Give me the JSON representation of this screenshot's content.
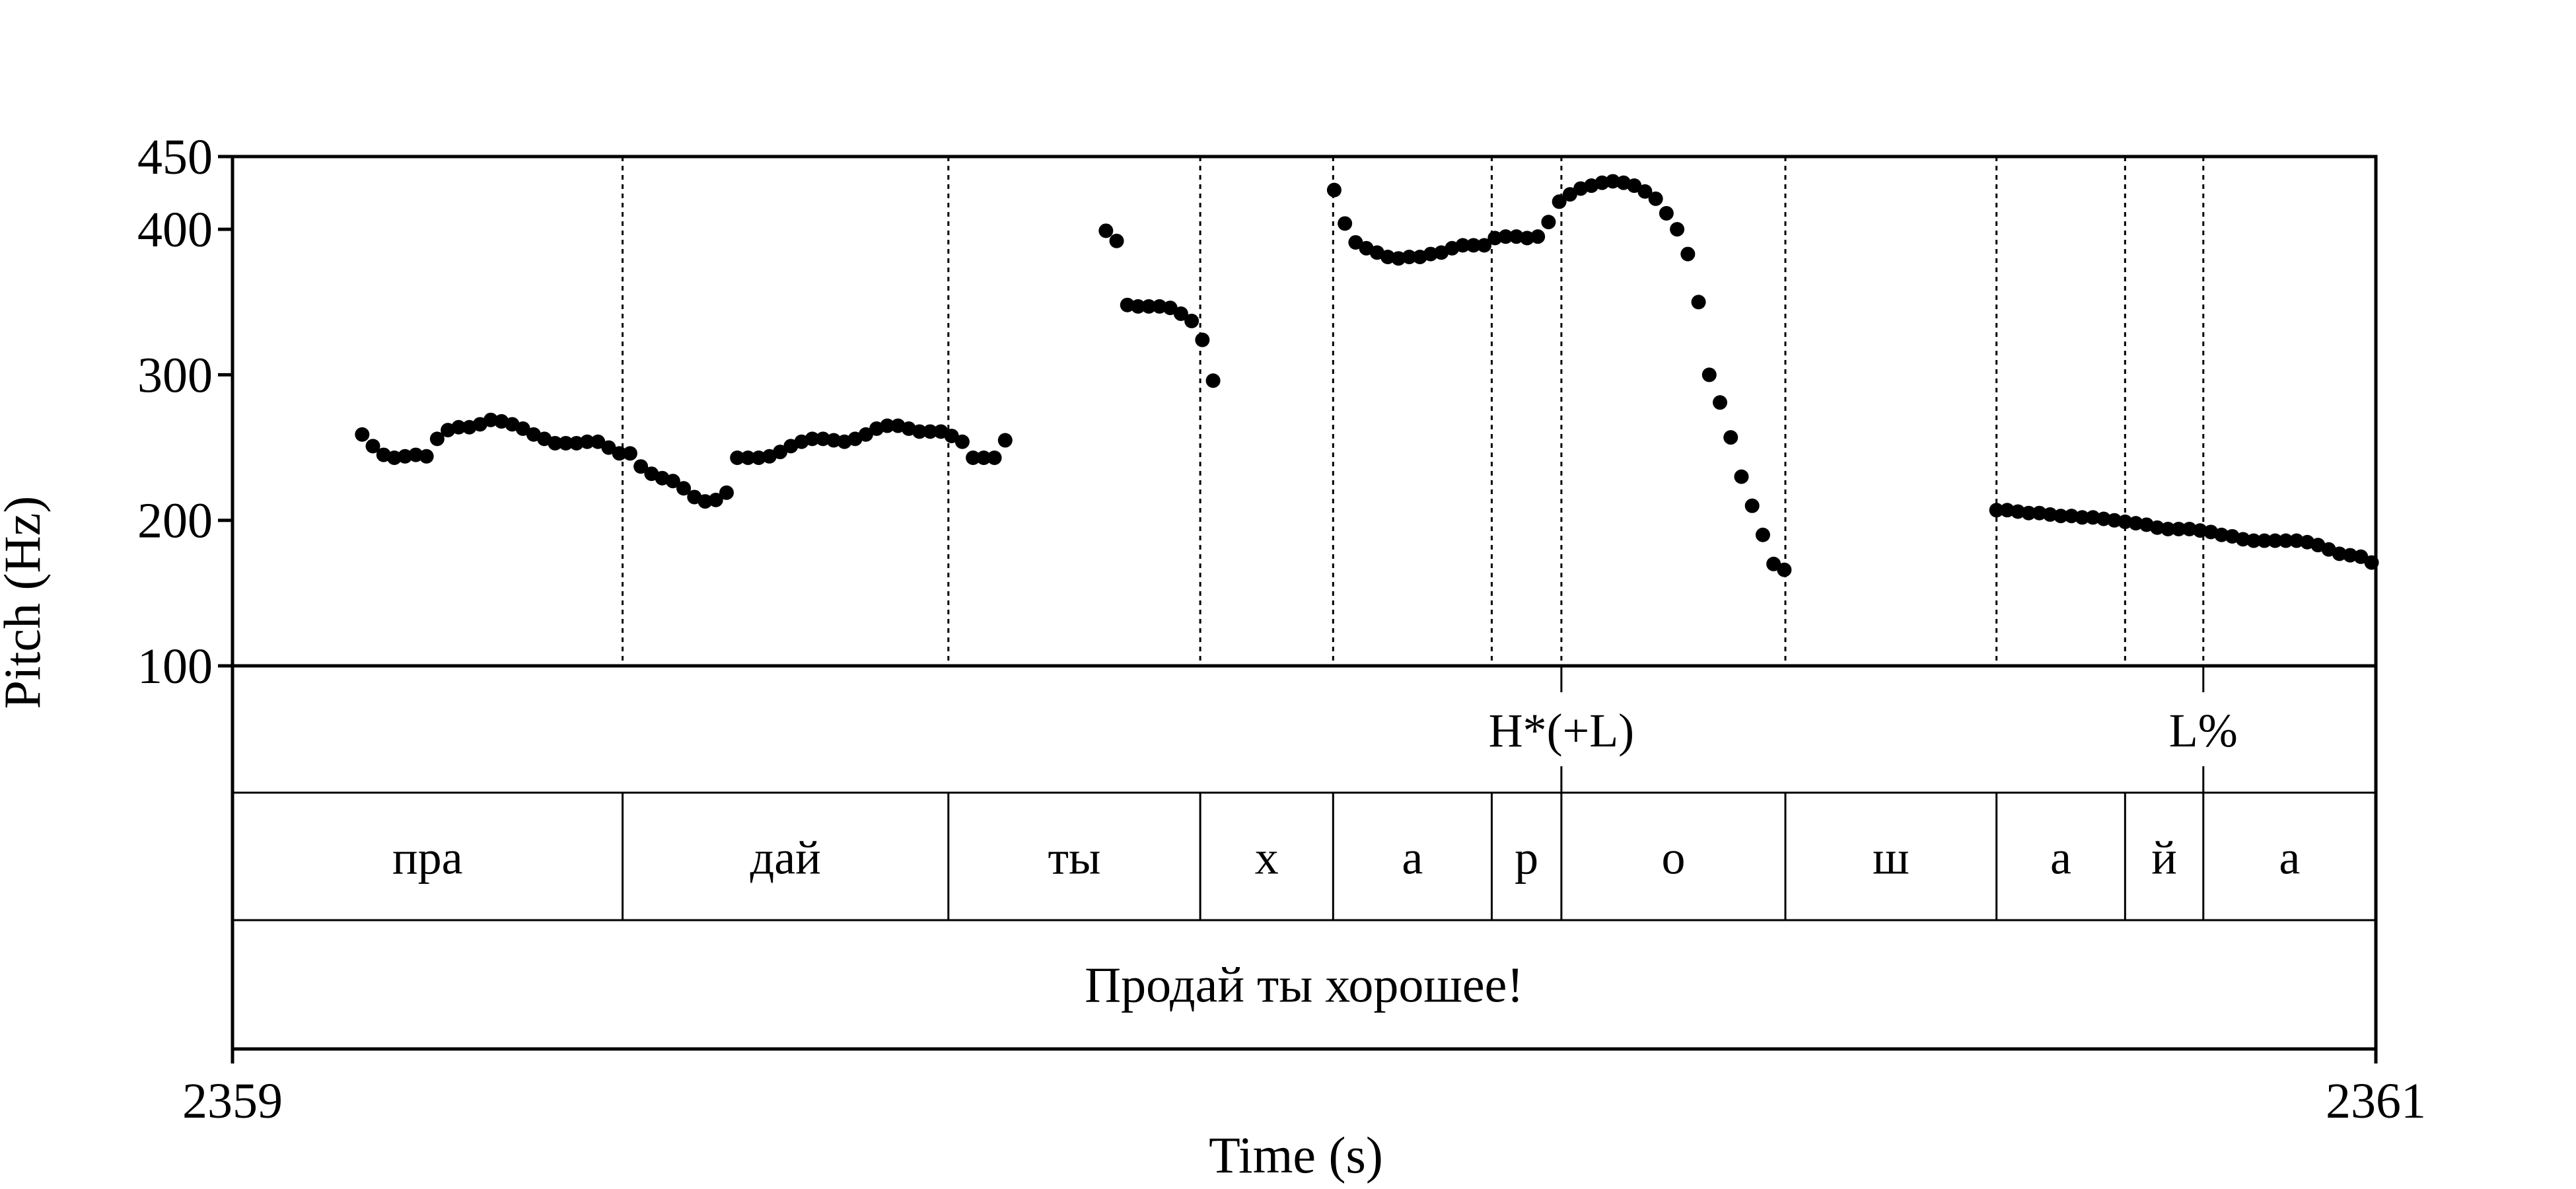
{
  "chart_data": {
    "type": "scatter",
    "ylabel": "Pitch (Hz)",
    "xlabel": "Time (s)",
    "ylim": [
      100,
      450
    ],
    "yticks": [
      "450",
      "400",
      "300",
      "200",
      "100"
    ],
    "xlim": [
      2359,
      2361
    ],
    "xticks": [
      "2359",
      "2361"
    ],
    "grid": false,
    "boundaries": [
      2359.364,
      2359.668,
      2359.903,
      2360.027,
      2360.175,
      2360.24,
      2360.449,
      2360.646,
      2360.766,
      2360.839
    ],
    "tiers": {
      "tones": [
        {
          "label": "H*(+L)",
          "time": 2360.24
        },
        {
          "label": "L%",
          "time": 2360.839
        }
      ],
      "syllables": [
        "пра",
        "дай",
        "ты",
        "х",
        "а",
        "р",
        "о",
        "ш",
        "а",
        "й",
        "а"
      ],
      "sentence": "Продай ты хорошее!"
    },
    "points": [
      [
        2359.121,
        259
      ],
      [
        2359.131,
        251
      ],
      [
        2359.141,
        245
      ],
      [
        2359.151,
        243
      ],
      [
        2359.161,
        244
      ],
      [
        2359.171,
        245
      ],
      [
        2359.181,
        244
      ],
      [
        2359.191,
        256
      ],
      [
        2359.201,
        262
      ],
      [
        2359.211,
        264
      ],
      [
        2359.221,
        264
      ],
      [
        2359.231,
        266
      ],
      [
        2359.241,
        269
      ],
      [
        2359.251,
        268
      ],
      [
        2359.261,
        266
      ],
      [
        2359.271,
        263
      ],
      [
        2359.281,
        259
      ],
      [
        2359.291,
        256
      ],
      [
        2359.301,
        253
      ],
      [
        2359.311,
        253
      ],
      [
        2359.321,
        253
      ],
      [
        2359.331,
        254
      ],
      [
        2359.341,
        254
      ],
      [
        2359.351,
        250
      ],
      [
        2359.361,
        246
      ],
      [
        2359.371,
        246
      ],
      [
        2359.381,
        237
      ],
      [
        2359.391,
        232
      ],
      [
        2359.401,
        229
      ],
      [
        2359.411,
        227
      ],
      [
        2359.421,
        222
      ],
      [
        2359.431,
        216
      ],
      [
        2359.441,
        213
      ],
      [
        2359.451,
        214
      ],
      [
        2359.461,
        219
      ],
      [
        2359.471,
        243
      ],
      [
        2359.481,
        243
      ],
      [
        2359.491,
        243
      ],
      [
        2359.501,
        244
      ],
      [
        2359.511,
        247
      ],
      [
        2359.521,
        251
      ],
      [
        2359.531,
        254
      ],
      [
        2359.541,
        256
      ],
      [
        2359.551,
        256
      ],
      [
        2359.561,
        255
      ],
      [
        2359.571,
        254
      ],
      [
        2359.581,
        256
      ],
      [
        2359.591,
        259
      ],
      [
        2359.601,
        263
      ],
      [
        2359.611,
        265
      ],
      [
        2359.621,
        265
      ],
      [
        2359.631,
        263
      ],
      [
        2359.641,
        261
      ],
      [
        2359.651,
        261
      ],
      [
        2359.661,
        261
      ],
      [
        2359.671,
        258
      ],
      [
        2359.681,
        254
      ],
      [
        2359.691,
        243
      ],
      [
        2359.701,
        243
      ],
      [
        2359.711,
        243
      ],
      [
        2359.721,
        255
      ],
      [
        2359.815,
        399
      ],
      [
        2359.825,
        392
      ],
      [
        2359.835,
        348
      ],
      [
        2359.845,
        347
      ],
      [
        2359.855,
        347
      ],
      [
        2359.865,
        347
      ],
      [
        2359.875,
        346
      ],
      [
        2359.885,
        342
      ],
      [
        2359.895,
        337
      ],
      [
        2359.905,
        324
      ],
      [
        2359.915,
        296
      ],
      [
        2360.028,
        427
      ],
      [
        2360.038,
        404
      ],
      [
        2360.048,
        391
      ],
      [
        2360.058,
        387
      ],
      [
        2360.068,
        384
      ],
      [
        2360.078,
        381
      ],
      [
        2360.088,
        380
      ],
      [
        2360.098,
        381
      ],
      [
        2360.108,
        381
      ],
      [
        2360.118,
        383
      ],
      [
        2360.128,
        384
      ],
      [
        2360.138,
        387
      ],
      [
        2360.148,
        389
      ],
      [
        2360.158,
        389
      ],
      [
        2360.168,
        389
      ],
      [
        2360.178,
        394
      ],
      [
        2360.188,
        395
      ],
      [
        2360.198,
        395
      ],
      [
        2360.208,
        394
      ],
      [
        2360.218,
        395
      ],
      [
        2360.228,
        405
      ],
      [
        2360.238,
        419
      ],
      [
        2360.248,
        424
      ],
      [
        2360.258,
        428
      ],
      [
        2360.268,
        430
      ],
      [
        2360.278,
        432
      ],
      [
        2360.288,
        433
      ],
      [
        2360.298,
        432
      ],
      [
        2360.308,
        430
      ],
      [
        2360.318,
        426
      ],
      [
        2360.328,
        421
      ],
      [
        2360.338,
        411
      ],
      [
        2360.348,
        400
      ],
      [
        2360.358,
        383
      ],
      [
        2360.368,
        350
      ],
      [
        2360.378,
        300
      ],
      [
        2360.388,
        281
      ],
      [
        2360.398,
        257
      ],
      [
        2360.408,
        230
      ],
      [
        2360.418,
        210
      ],
      [
        2360.428,
        190
      ],
      [
        2360.438,
        170
      ],
      [
        2360.448,
        166
      ],
      [
        2360.646,
        207
      ],
      [
        2360.656,
        207
      ],
      [
        2360.666,
        206
      ],
      [
        2360.676,
        205
      ],
      [
        2360.686,
        205
      ],
      [
        2360.696,
        204
      ],
      [
        2360.706,
        203
      ],
      [
        2360.716,
        203
      ],
      [
        2360.726,
        202
      ],
      [
        2360.736,
        202
      ],
      [
        2360.746,
        201
      ],
      [
        2360.756,
        200
      ],
      [
        2360.766,
        199
      ],
      [
        2360.776,
        198
      ],
      [
        2360.786,
        197
      ],
      [
        2360.796,
        195
      ],
      [
        2360.806,
        194
      ],
      [
        2360.816,
        194
      ],
      [
        2360.826,
        194
      ],
      [
        2360.836,
        193
      ],
      [
        2360.846,
        192
      ],
      [
        2360.856,
        190
      ],
      [
        2360.866,
        189
      ],
      [
        2360.876,
        187
      ],
      [
        2360.886,
        186
      ],
      [
        2360.896,
        186
      ],
      [
        2360.906,
        186
      ],
      [
        2360.916,
        186
      ],
      [
        2360.926,
        186
      ],
      [
        2360.936,
        185
      ],
      [
        2360.946,
        183
      ],
      [
        2360.956,
        180
      ],
      [
        2360.966,
        177
      ],
      [
        2360.976,
        176
      ],
      [
        2360.986,
        175
      ],
      [
        2360.996,
        171
      ]
    ]
  }
}
